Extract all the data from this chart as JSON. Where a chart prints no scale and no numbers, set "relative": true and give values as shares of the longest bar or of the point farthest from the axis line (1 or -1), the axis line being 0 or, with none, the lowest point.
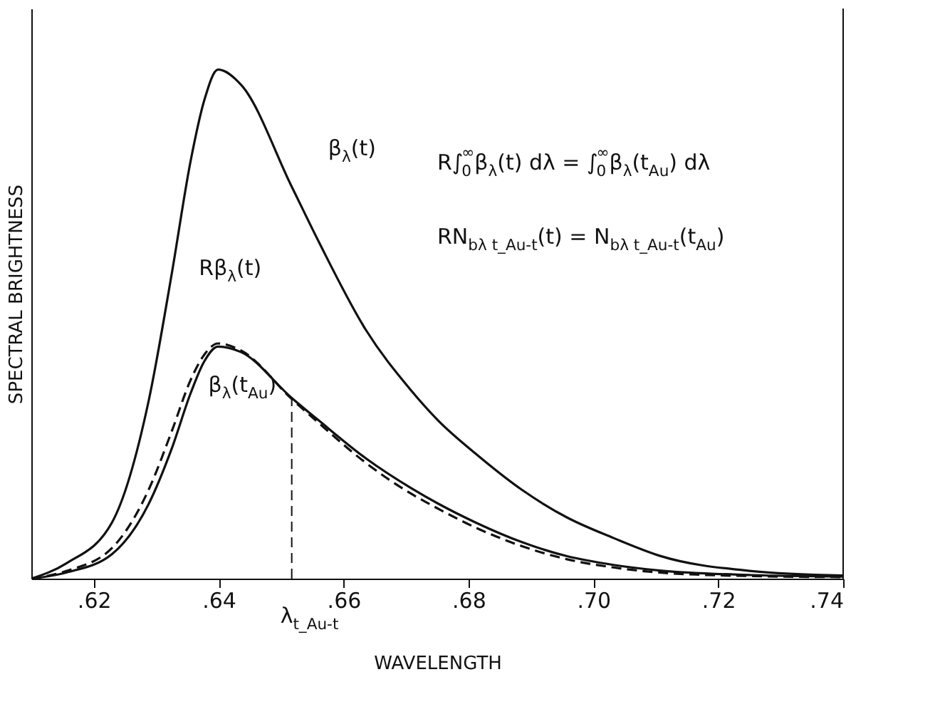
{
  "chart_data": {
    "type": "line",
    "relative": true,
    "xlabel": "WAVELENGTH",
    "ylabel": "SPECTRAL BRIGHTNESS",
    "xlim": [
      0.61,
      0.74
    ],
    "xticks": [
      {
        "value": 0.62,
        "label": ".62"
      },
      {
        "value": 0.64,
        "label": ".64"
      },
      {
        "value": 0.66,
        "label": ".66"
      },
      {
        "value": 0.68,
        "label": ".68"
      },
      {
        "value": 0.7,
        "label": ".70"
      },
      {
        "value": 0.72,
        "label": ".72"
      },
      {
        "value": 0.74,
        "label": ".74"
      }
    ],
    "x": [
      0.61,
      0.6156,
      0.6229,
      0.6288,
      0.6325,
      0.6355,
      0.6377,
      0.6399,
      0.6436,
      0.6517,
      0.6561,
      0.6635,
      0.6708,
      0.6752,
      0.6812,
      0.6885,
      0.6958,
      0.7032,
      0.7106,
      0.7253,
      0.74
    ],
    "series": [
      {
        "color": "#111111",
        "line_style": "solid",
        "values": [
          0.0,
          0.03,
          0.11,
          0.35,
          0.6,
          0.82,
          0.94,
          1.0,
          0.97,
          0.77,
          0.66,
          0.49,
          0.37,
          0.31,
          0.245,
          0.175,
          0.12,
          0.08,
          0.045,
          0.015,
          0.006
        ]
      },
      {
        "color": "#111111",
        "line_style": "dashed",
        "values": [
          0.0,
          0.015,
          0.06,
          0.175,
          0.29,
          0.39,
          0.44,
          0.462,
          0.448,
          0.353,
          0.305,
          0.228,
          0.167,
          0.137,
          0.1,
          0.064,
          0.038,
          0.022,
          0.012,
          0.005,
          0.003
        ]
      },
      {
        "color": "#111111",
        "line_style": "solid",
        "values": [
          0.0,
          0.012,
          0.048,
          0.147,
          0.256,
          0.364,
          0.427,
          0.456,
          0.445,
          0.355,
          0.31,
          0.237,
          0.178,
          0.147,
          0.11,
          0.072,
          0.044,
          0.027,
          0.016,
          0.007,
          0.004
        ]
      }
    ],
    "ref_lines": [
      {
        "axis": "x",
        "value": 0.6517,
        "label": "λ$_{t_Au-t}$",
        "line_style": "dashed"
      }
    ],
    "annotations": [
      "β$_{λ}$(t)",
      "Rβ$_{λ}$(t)",
      "β$_{λ}$(t$_{Au}$)",
      "R∫$_{0}$$^{∞}$β$_{λ}$(t) dλ = ∫$_{0}$$^{∞}$β$_{λ}$(t$_{Au}$) dλ",
      "RN$_{bλ t_Au-t}$(t) = N$_{bλ t_Au-t}$(t$_{Au}$)"
    ],
    "grid": false
  }
}
